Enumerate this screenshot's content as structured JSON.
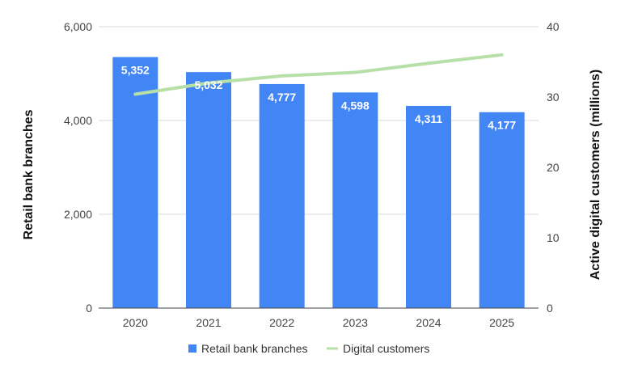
{
  "chart_data": {
    "type": "bar",
    "categories": [
      "2020",
      "2021",
      "2022",
      "2023",
      "2024",
      "2025"
    ],
    "series": [
      {
        "name": "Retail bank branches",
        "type": "bar",
        "axis": "left",
        "values": [
          5352,
          5032,
          4777,
          4598,
          4311,
          4177
        ],
        "data_labels": [
          "5,352",
          "5,032",
          "4,777",
          "4,598",
          "4,311",
          "4,177"
        ],
        "color": "#4285f4"
      },
      {
        "name": "Digital customers",
        "type": "line",
        "axis": "right",
        "values": [
          30.4,
          32.0,
          33.0,
          33.5,
          34.8,
          36.0
        ],
        "color": "#b7dfa8"
      }
    ],
    "y_left": {
      "label": "Retail bank branches",
      "ylim": [
        0,
        6000
      ],
      "ticks": [
        0,
        2000,
        4000,
        6000
      ],
      "tick_labels": [
        "0",
        "2,000",
        "4,000",
        "6,000"
      ]
    },
    "y_right": {
      "label": "Active digital customers (millions)",
      "ylim": [
        0,
        40
      ],
      "ticks": [
        0,
        10,
        20,
        30,
        40
      ],
      "tick_labels": [
        "0",
        "10",
        "20",
        "30",
        "40"
      ]
    },
    "grid": true,
    "legend": "bottom",
    "gridline_color": "#d9d9d9",
    "axis_line_color": "#444444"
  }
}
